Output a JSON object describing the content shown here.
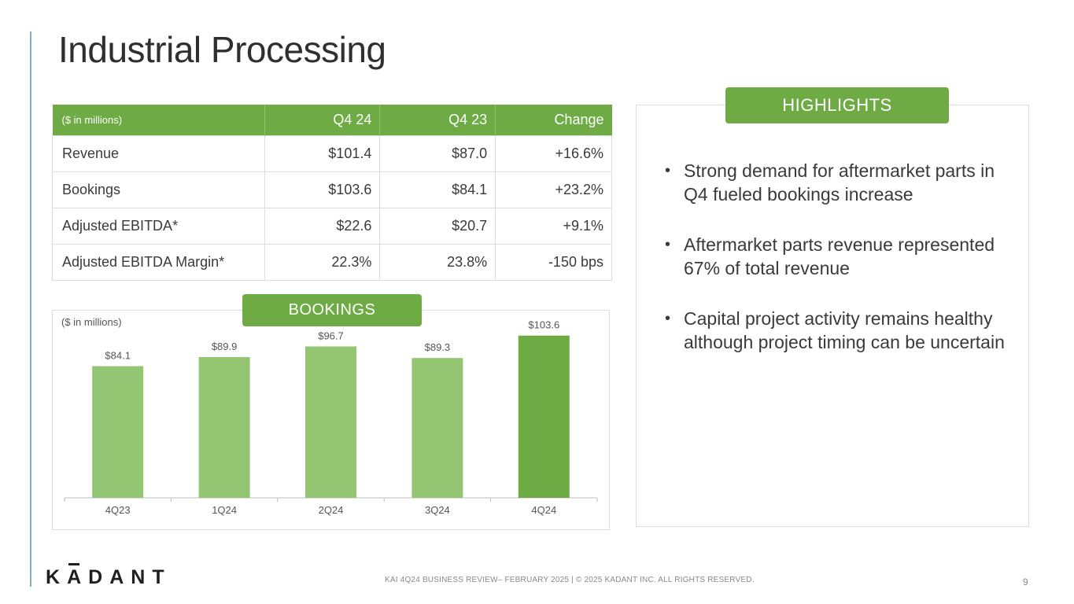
{
  "title": "Industrial Processing",
  "table": {
    "headers": [
      "($ in millions)",
      "Q4 24",
      "Q4 23",
      "Change"
    ],
    "rows": [
      [
        "Revenue",
        "$101.4",
        "$87.0",
        "+16.6%"
      ],
      [
        "Bookings",
        "$103.6",
        "$84.1",
        "+23.2%"
      ],
      [
        "Adjusted EBITDA*",
        "$22.6",
        "$20.7",
        "+9.1%"
      ],
      [
        "Adjusted EBITDA Margin*",
        "22.3%",
        "23.8%",
        "-150 bps"
      ]
    ]
  },
  "bookings_label": "BOOKINGS",
  "chart_units": "($ in millions)",
  "chart_data": {
    "type": "bar",
    "categories": [
      "4Q23",
      "1Q24",
      "2Q24",
      "3Q24",
      "4Q24"
    ],
    "values": [
      84.1,
      89.9,
      96.7,
      89.3,
      103.6
    ],
    "data_labels": [
      "$84.1",
      "$89.9",
      "$96.7",
      "$89.3",
      "$103.6"
    ],
    "ylim": [
      0,
      110
    ],
    "colors": [
      "#93c572",
      "#93c572",
      "#93c572",
      "#93c572",
      "#6fab45"
    ],
    "grid": false
  },
  "highlights": {
    "label": "HIGHLIGHTS",
    "items": [
      "Strong demand for aftermarket parts in Q4 fueled bookings increase",
      "Aftermarket parts revenue represented 67% of total revenue",
      "Capital project activity remains healthy although project  timing can be uncertain"
    ]
  },
  "footer": {
    "logo_text": "KADANT",
    "text": "KAI 4Q24 BUSINESS REVIEW– FEBRUARY 2025  |  © 2025 KADANT INC. ALL RIGHTS RESERVED.",
    "page_number": "9"
  }
}
